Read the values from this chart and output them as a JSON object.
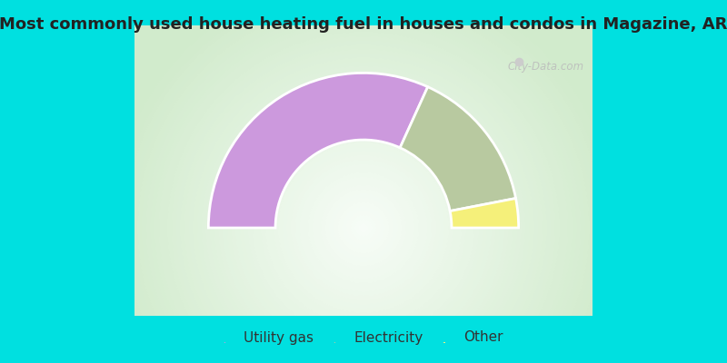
{
  "title": "Most commonly used house heating fuel in houses and condos in Magazine, AR",
  "slices": [
    {
      "label": "Utility gas",
      "value": 63.6,
      "color": "#cc99dd"
    },
    {
      "label": "Electricity",
      "value": 30.3,
      "color": "#b8c9a0"
    },
    {
      "label": "Other",
      "value": 6.1,
      "color": "#f5f07a"
    }
  ],
  "bg_color_outer": "#00e0e0",
  "title_fontsize": 13,
  "title_color": "#222222",
  "legend_fontsize": 11,
  "outer_r": 0.88,
  "inner_r": 0.5
}
